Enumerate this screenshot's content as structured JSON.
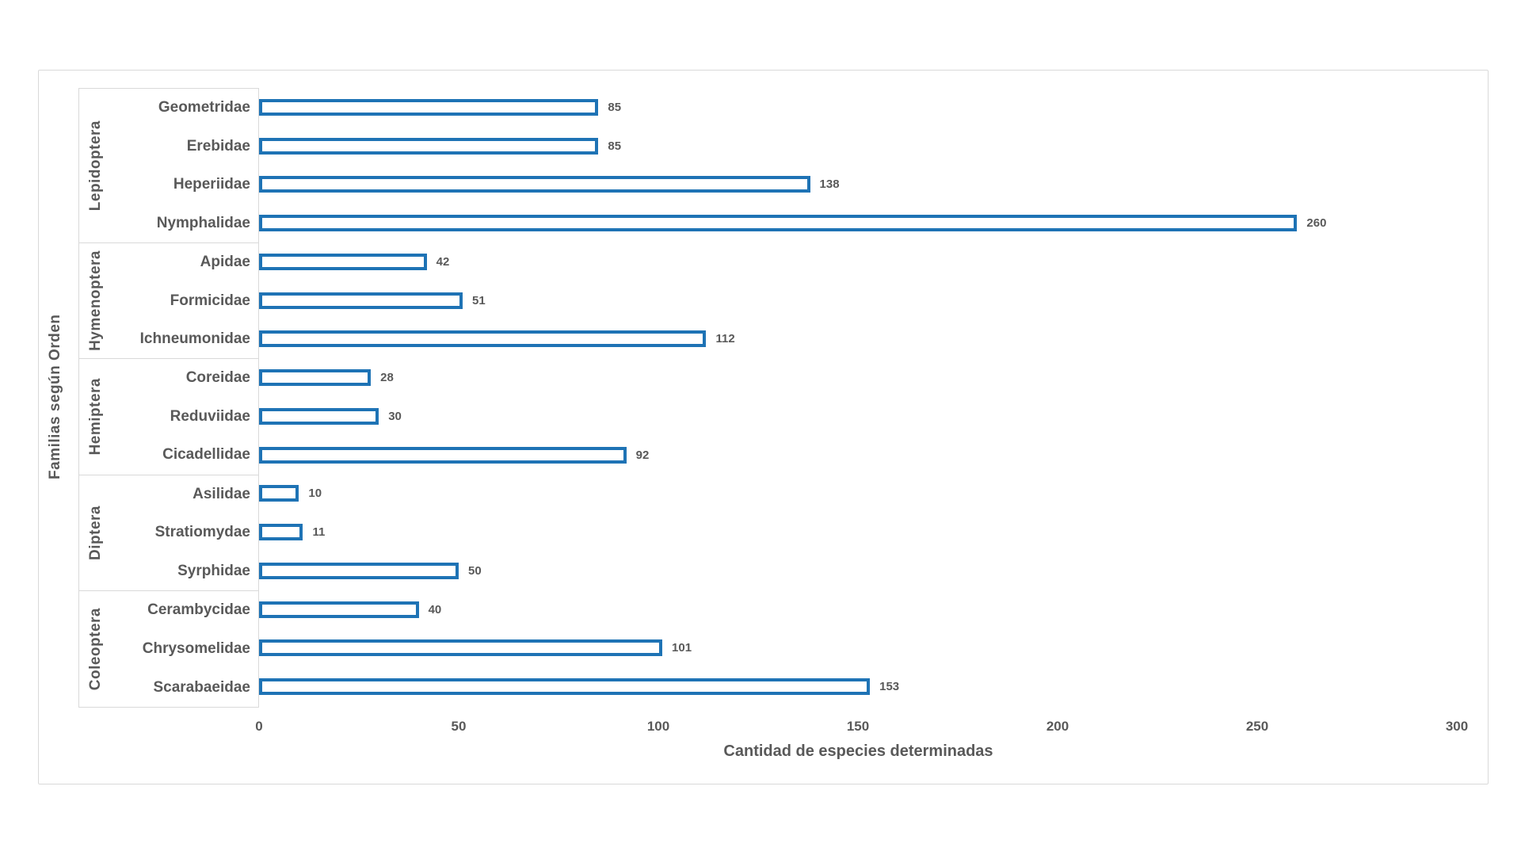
{
  "page": {
    "background": "#ffffff"
  },
  "chart": {
    "xlabel": "Cantidad de especies determinadas",
    "ylabel": "Familias según Orden"
  },
  "chart_data": {
    "type": "bar",
    "orientation": "horizontal",
    "title": "",
    "xlabel": "Cantidad de especies determinadas",
    "ylabel": "Familias según Orden",
    "xlim": [
      0,
      300
    ],
    "xticks": [
      0,
      50,
      100,
      150,
      200,
      250,
      300
    ],
    "grid": false,
    "legend": false,
    "bar_style": {
      "fill": "#ffffff",
      "border_color": "#1e73b5"
    },
    "groups": [
      {
        "order": "Lepidoptera",
        "families": [
          {
            "name": "Geometridae",
            "value": 85
          },
          {
            "name": "Erebidae",
            "value": 85
          },
          {
            "name": "Heperiidae",
            "value": 138
          },
          {
            "name": "Nymphalidae",
            "value": 260
          }
        ]
      },
      {
        "order": "Hymenoptera",
        "families": [
          {
            "name": "Apidae",
            "value": 42
          },
          {
            "name": "Formicidae",
            "value": 51
          },
          {
            "name": "Ichneumonidae",
            "value": 112
          }
        ]
      },
      {
        "order": "Hemiptera",
        "families": [
          {
            "name": "Coreidae",
            "value": 28
          },
          {
            "name": "Reduviidae",
            "value": 30
          },
          {
            "name": "Cicadellidae",
            "value": 92
          }
        ]
      },
      {
        "order": "Diptera",
        "families": [
          {
            "name": "Asilidae",
            "value": 10
          },
          {
            "name": "Stratiomydae",
            "value": 11
          },
          {
            "name": "Syrphidae",
            "value": 50
          }
        ]
      },
      {
        "order": "Coleoptera",
        "families": [
          {
            "name": "Cerambycidae",
            "value": 40
          },
          {
            "name": "Chrysomelidae",
            "value": 101
          },
          {
            "name": "Scarabaeidae",
            "value": 153
          }
        ]
      }
    ]
  },
  "colors": {
    "bar_border": "#1e73b5",
    "text": "#595959",
    "frame_border": "#d9d9d9"
  }
}
